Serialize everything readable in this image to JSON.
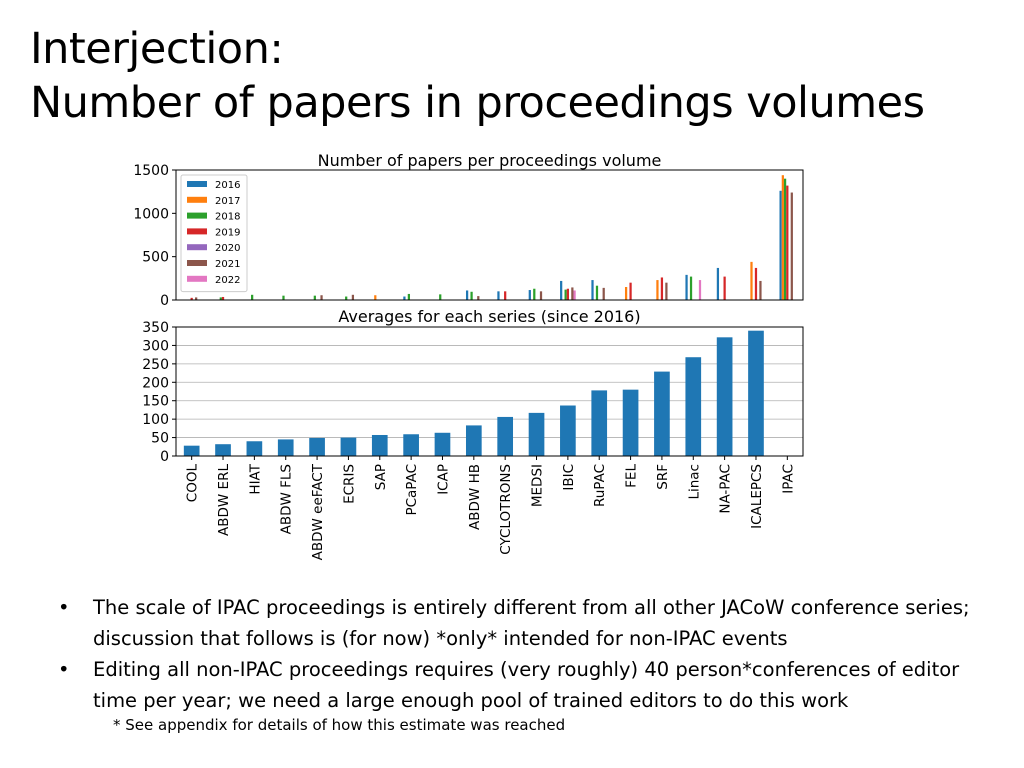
{
  "slide": {
    "title_line1": "Interjection:",
    "title_line2": "Number of papers in proceedings volumes",
    "bullets": [
      "The scale of IPAC proceedings is entirely different from all other JACoW conference series; discussion that follows is (for now) *only* intended for non-IPAC events",
      "Editing all non-IPAC proceedings requires (very roughly) 40 person*conferences of editor time per year; we need a large enough pool of trained editors to do this work"
    ],
    "bullet_marker": "•",
    "footnote": "* See appendix for details of how this estimate was reached"
  },
  "chart_data": [
    {
      "type": "bar",
      "title": "Number of papers per proceedings volume",
      "xlabel": "",
      "ylabel": "",
      "ylim": [
        0,
        1500
      ],
      "yticks": [
        0,
        500,
        1000,
        1500
      ],
      "legend_position": "top-left",
      "grid": false,
      "categories": [
        "COOL",
        "ABDW ERL",
        "HIAT",
        "ABDW FLS",
        "ABDW eeFACT",
        "ECRIS",
        "SAP",
        "PCaPAC",
        "ICAP",
        "ABDW HB",
        "CYCLOTRONS",
        "MEDSI",
        "IBIC",
        "RuPAC",
        "FEL",
        "SRF",
        "Linac",
        "NA-PAC",
        "ICALEPCS",
        "IPAC"
      ],
      "series": [
        {
          "name": "2016",
          "color": "#1f77b4",
          "values": [
            null,
            null,
            null,
            null,
            null,
            null,
            null,
            40,
            null,
            110,
            100,
            115,
            220,
            230,
            null,
            null,
            290,
            370,
            null,
            1260
          ]
        },
        {
          "name": "2017",
          "color": "#ff7f0e",
          "values": [
            null,
            null,
            null,
            null,
            null,
            null,
            55,
            null,
            null,
            null,
            null,
            null,
            null,
            null,
            150,
            230,
            null,
            null,
            440,
            1440
          ]
        },
        {
          "name": "2018",
          "color": "#2ca02c",
          "values": [
            null,
            30,
            60,
            50,
            50,
            40,
            null,
            70,
            65,
            95,
            null,
            130,
            120,
            165,
            null,
            null,
            270,
            null,
            null,
            1400
          ]
        },
        {
          "name": "2019",
          "color": "#d62728",
          "values": [
            25,
            35,
            null,
            null,
            null,
            null,
            null,
            null,
            null,
            null,
            100,
            null,
            130,
            null,
            200,
            260,
            null,
            270,
            370,
            1320
          ]
        },
        {
          "name": "2020",
          "color": "#9467bd",
          "values": [
            null,
            null,
            null,
            null,
            null,
            null,
            null,
            null,
            null,
            null,
            null,
            null,
            null,
            null,
            null,
            null,
            null,
            null,
            null,
            null
          ]
        },
        {
          "name": "2021",
          "color": "#8c564b",
          "values": [
            30,
            null,
            null,
            null,
            55,
            60,
            null,
            null,
            null,
            45,
            null,
            100,
            145,
            140,
            null,
            200,
            null,
            null,
            220,
            1240
          ]
        },
        {
          "name": "2022",
          "color": "#e377c2",
          "values": [
            null,
            null,
            null,
            null,
            null,
            null,
            null,
            null,
            null,
            null,
            null,
            null,
            110,
            null,
            null,
            null,
            230,
            null,
            null,
            null
          ]
        }
      ]
    },
    {
      "type": "bar",
      "title": "Averages for each series (since 2016)",
      "xlabel": "",
      "ylabel": "",
      "ylim": [
        0,
        350
      ],
      "yticks": [
        0,
        50,
        100,
        150,
        200,
        250,
        300,
        350
      ],
      "grid": true,
      "bar_color": "#1f77b4",
      "categories": [
        "COOL",
        "ABDW ERL",
        "HIAT",
        "ABDW FLS",
        "ABDW eeFACT",
        "ECRIS",
        "SAP",
        "PCaPAC",
        "ICAP",
        "ABDW HB",
        "CYCLOTRONS",
        "MEDSI",
        "IBIC",
        "RuPAC",
        "FEL",
        "SRF",
        "Linac",
        "NA-PAC",
        "ICALEPCS",
        "IPAC"
      ],
      "values": [
        28,
        32,
        40,
        45,
        49,
        50,
        57,
        59,
        63,
        83,
        106,
        117,
        137,
        178,
        180,
        229,
        268,
        322,
        340,
        null
      ]
    }
  ]
}
